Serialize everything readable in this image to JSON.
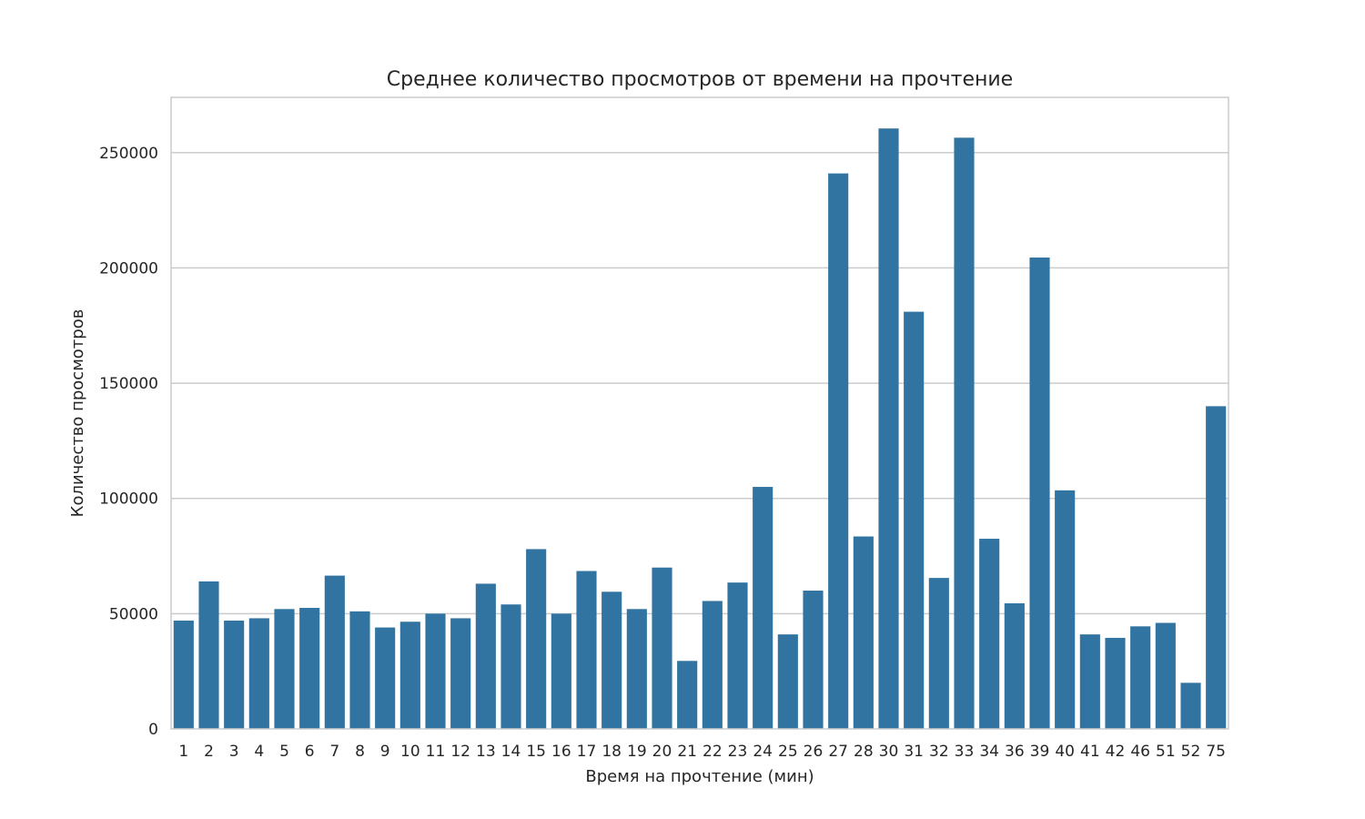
{
  "chart_data": {
    "type": "bar",
    "title": "Среднее количество просмотров от времени на прочтение",
    "xlabel": "Время на прочтение (мин)",
    "ylabel": "Количество просмотров",
    "categories": [
      "1",
      "2",
      "3",
      "4",
      "5",
      "6",
      "7",
      "8",
      "9",
      "10",
      "11",
      "12",
      "13",
      "14",
      "15",
      "16",
      "17",
      "18",
      "19",
      "20",
      "21",
      "22",
      "23",
      "24",
      "25",
      "26",
      "27",
      "28",
      "30",
      "31",
      "32",
      "33",
      "34",
      "36",
      "39",
      "40",
      "41",
      "42",
      "46",
      "51",
      "52",
      "75"
    ],
    "values": [
      47000,
      64000,
      47000,
      48000,
      52000,
      52500,
      66500,
      51000,
      44000,
      46500,
      50000,
      48000,
      63000,
      54000,
      78000,
      50000,
      68500,
      59500,
      52000,
      70000,
      29500,
      55500,
      63500,
      105000,
      41000,
      60000,
      241000,
      83500,
      260500,
      181000,
      65500,
      256500,
      82500,
      54500,
      204500,
      103500,
      41000,
      39500,
      44500,
      46000,
      20000,
      140000
    ],
    "ylim": [
      0,
      274000
    ],
    "yticks": [
      0,
      50000,
      100000,
      150000,
      200000,
      250000
    ],
    "ytick_labels": [
      "0",
      "50000",
      "100000",
      "150000",
      "200000",
      "250000"
    ],
    "grid": true,
    "colors": {
      "bar": "#3274a1",
      "grid": "#cccccc",
      "frame": "#cccccc",
      "text": "#262626"
    }
  }
}
